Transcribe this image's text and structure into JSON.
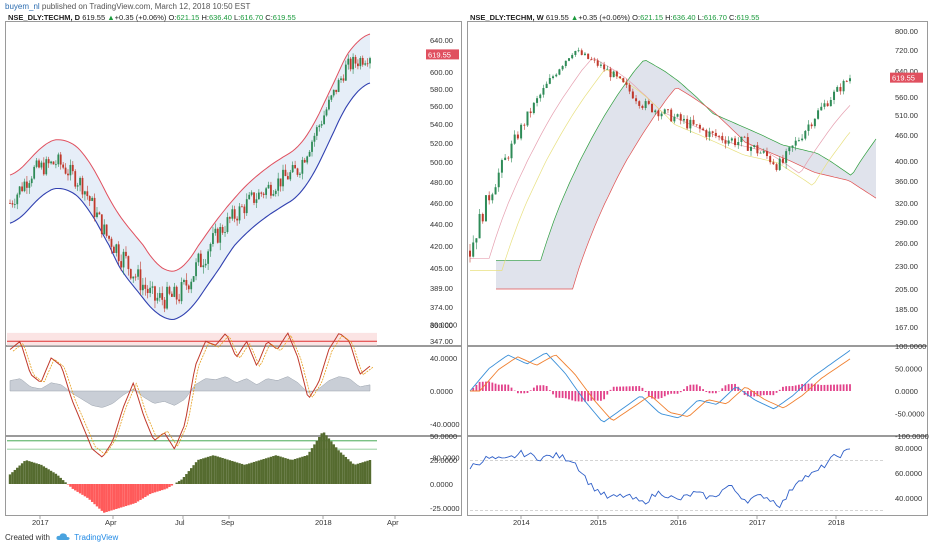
{
  "header": {
    "user": "buyem_nl",
    "text": " published on TradingView.com, March 12, 2018 10:50 EST"
  },
  "footer": {
    "created_with": "Created with",
    "brand": "TradingView"
  },
  "colors": {
    "up": "#2e8b57",
    "down": "#c0392b",
    "env_upper": "#e0505f",
    "env_lower": "#3040b0",
    "env_fill": "#e6eef8",
    "price_badge": "#e0505f",
    "hist_pos": "#556b2f",
    "hist_neg": "#ff5a5a",
    "macd_hist": "#e2418a"
  },
  "left": {
    "legend": {
      "symbol": "NSE_DLY:TECHM, D",
      "last": "619.55",
      "change": "+0.35 (+0.06%)",
      "o_label": "O:",
      "o": "621.15",
      "h_label": "H:",
      "h": "636.40",
      "l_label": "L:",
      "l": "616.70",
      "c_label": "C:",
      "c": "619.55"
    },
    "price_badge": "619.55",
    "price_ticks": [
      "640.00",
      "620.00",
      "600.00",
      "580.00",
      "560.00",
      "540.00",
      "520.00",
      "500.00",
      "480.00",
      "460.00",
      "440.00",
      "420.00",
      "405.00",
      "389.00",
      "374.00",
      "360.00",
      "347.00"
    ],
    "osc_ticks": [
      "80.0000",
      "40.0000",
      "0.0000",
      "-40.0000",
      "-80.0000"
    ],
    "hist_ticks": [
      "50.0000",
      "25.0000",
      "0.0000",
      "-25.0000"
    ],
    "time_labels": [
      "2017",
      "Apr",
      "Jul",
      "Sep",
      "2018",
      "Apr"
    ]
  },
  "right": {
    "legend": {
      "symbol": "NSE_DLY:TECHM, W",
      "last": "619.55",
      "change": "+0.35 (+0.06%)",
      "o_label": "O:",
      "o": "621.15",
      "h_label": "H:",
      "h": "636.40",
      "l_label": "L:",
      "l": "616.70",
      "c_label": "C:",
      "c": "619.55"
    },
    "price_badge": "619.55",
    "price_ticks": [
      "800.00",
      "720.00",
      "640.00",
      "560.00",
      "510.00",
      "460.00",
      "400.00",
      "360.00",
      "320.00",
      "290.00",
      "260.00",
      "230.00",
      "205.00",
      "185.00",
      "167.00"
    ],
    "macd_ticks": [
      "100.0000",
      "50.0000",
      "0.0000",
      "-50.0000",
      "-100.0000"
    ],
    "rsi_ticks": [
      "80.0000",
      "60.0000",
      "40.0000"
    ],
    "time_labels": [
      "2014",
      "2015",
      "2016",
      "2017",
      "2018"
    ]
  },
  "chart_data": [
    {
      "type": "line",
      "title": "",
      "description_symbol": "NSE_DLY:TECHM, D",
      "xlabel": "",
      "ylabel": "",
      "ylim": [
        340,
        650
      ],
      "x": [
        "2016-12",
        "2017-01",
        "2017-02",
        "2017-03",
        "2017-04",
        "2017-05",
        "2017-06",
        "2017-07",
        "2017-08",
        "2017-09",
        "2017-10",
        "2017-11",
        "2017-12",
        "2018-01",
        "2018-02",
        "2018-03"
      ],
      "series": [
        {
          "name": "",
          "values": [
            460,
            492,
            500,
            478,
            430,
            405,
            380,
            382,
            412,
            440,
            462,
            478,
            492,
            545,
            605,
            620
          ]
        }
      ]
    },
    {
      "type": "line",
      "description_symbol": "NSE_DLY:TECHM, W",
      "title": "",
      "xlabel": "",
      "ylabel": "",
      "ylim": [
        160,
        810
      ],
      "x": [
        "2013-06",
        "2013-12",
        "2014-06",
        "2014-12",
        "2015-03",
        "2015-06",
        "2015-12",
        "2016-06",
        "2016-12",
        "2017-06",
        "2017-12",
        "2018-03"
      ],
      "series": [
        {
          "name": "",
          "values": [
            250,
            400,
            560,
            720,
            640,
            540,
            500,
            460,
            440,
            390,
            510,
            620
          ]
        }
      ]
    }
  ]
}
